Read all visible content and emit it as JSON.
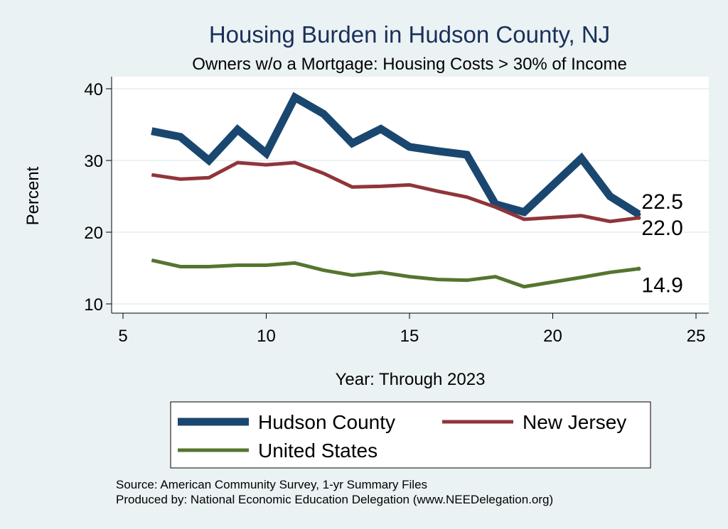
{
  "chart_data": {
    "type": "line",
    "title": "Housing Burden in Hudson County, NJ",
    "subtitle": "Owners w/o a Mortgage: Housing Costs > 30% of Income",
    "xlabel": "Year: Through 2023",
    "ylabel": "Percent",
    "xlim": [
      5,
      25
    ],
    "ylim": [
      10,
      40
    ],
    "xticks": [
      5,
      10,
      15,
      20,
      25
    ],
    "yticks": [
      10,
      20,
      30,
      40
    ],
    "grid": true,
    "legend_position": "bottom",
    "series": [
      {
        "name": "Hudson County",
        "color": "#1a476f",
        "x": [
          6,
          7,
          8,
          9,
          10,
          11,
          12,
          13,
          14,
          15,
          16,
          17,
          18,
          19,
          21,
          22,
          23
        ],
        "y": [
          34.1,
          33.3,
          30.0,
          34.3,
          31.0,
          38.8,
          36.5,
          32.4,
          34.4,
          31.9,
          31.3,
          30.8,
          23.9,
          22.8,
          30.3,
          25.0,
          22.5
        ],
        "end_label": "22.5"
      },
      {
        "name": "New Jersey",
        "color": "#90353b",
        "x": [
          6,
          7,
          8,
          9,
          10,
          11,
          12,
          13,
          14,
          15,
          16,
          17,
          18,
          19,
          21,
          22,
          23
        ],
        "y": [
          28.0,
          27.4,
          27.6,
          29.7,
          29.4,
          29.7,
          28.2,
          26.3,
          26.4,
          26.6,
          25.7,
          24.9,
          23.5,
          21.8,
          22.3,
          21.5,
          22.0
        ],
        "end_label": "22.0"
      },
      {
        "name": "United States",
        "color": "#55752f",
        "x": [
          6,
          7,
          8,
          9,
          10,
          11,
          12,
          13,
          14,
          15,
          16,
          17,
          18,
          19,
          21,
          22,
          23
        ],
        "y": [
          16.1,
          15.2,
          15.2,
          15.4,
          15.4,
          15.7,
          14.7,
          14.0,
          14.4,
          13.8,
          13.4,
          13.3,
          13.8,
          12.4,
          13.7,
          14.4,
          14.9
        ],
        "end_label": "14.9"
      }
    ],
    "legend": [
      "Hudson County",
      "New Jersey",
      "United States"
    ],
    "notes": [
      "Source: American Community Survey, 1-yr Summary Files",
      "Produced by: National Economic Education Delegation (www.NEEDelegation.org)"
    ]
  }
}
